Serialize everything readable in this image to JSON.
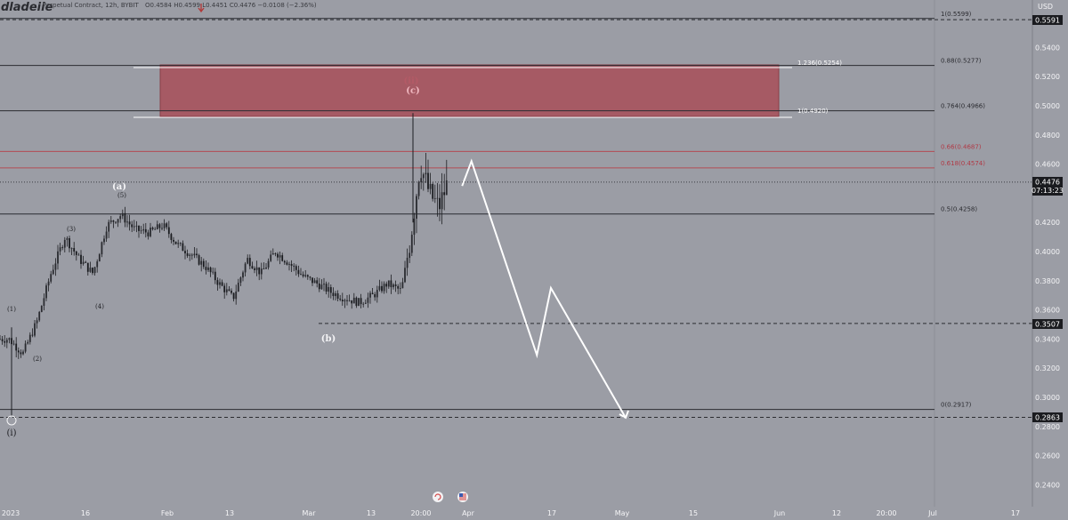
{
  "header": {
    "logo": "dladeiie",
    "symbol_info": "Perpetual Contract, 12h, BYBIT",
    "ohlc": "O0.4584  H0.4599  L0.4451  C0.4476  −0.0108 (−2.36%)"
  },
  "axis": {
    "currency": "USD",
    "y_ticks": [
      "0.5400",
      "0.5200",
      "0.5000",
      "0.4800",
      "0.4600",
      "0.4200",
      "0.4000",
      "0.3800",
      "0.3600",
      "0.3400",
      "0.3200",
      "0.3000",
      "0.2800",
      "0.2600",
      "0.2400"
    ],
    "x_ticks": [
      "2023",
      "16",
      "Feb",
      "13",
      "Mar",
      "13",
      "20:00",
      "Apr",
      "17",
      "May",
      "15",
      "Jun",
      "12",
      "20:00",
      "Jul",
      "17"
    ]
  },
  "price_labels": {
    "top": "0.5591",
    "current": "0.4476",
    "countdown": "07:13:23",
    "mid": "0.3507",
    "low": "0.2863"
  },
  "fib_levels": [
    {
      "label": "1(0.5599)",
      "price": 0.5599
    },
    {
      "label": "0.88(0.5277)",
      "price": 0.5277
    },
    {
      "label": "0.764(0.4966)",
      "price": 0.4966
    },
    {
      "label": "0.66(0.4687)",
      "price": 0.4687
    },
    {
      "label": "0.618(0.4574)",
      "price": 0.4574
    },
    {
      "label": "0.5(0.4258)",
      "price": 0.4258
    },
    {
      "label": "0(0.2917)",
      "price": 0.2917
    }
  ],
  "zone": {
    "upper_label": "1.236(0.5254)",
    "lower_label": "1(0.4920)",
    "color": "#a65a64"
  },
  "wave_labels": {
    "w1": "(1)",
    "w2": "(2)",
    "w3": "(3)",
    "w4": "(4)",
    "w5": "(5)",
    "a": "(a)",
    "b": "(b)",
    "c": "(c)",
    "ii": "(ii)",
    "i": "(i)"
  },
  "chart_data": {
    "type": "candlestick",
    "timeframe": "12h",
    "ohlc_last": {
      "open": 0.4584,
      "high": 0.4599,
      "low": 0.4451,
      "close": 0.4476,
      "change": -0.0108,
      "change_pct": -2.36
    },
    "ylim": [
      0.23,
      0.57
    ],
    "close_path": [
      [
        "2023-01-01",
        0.34
      ],
      [
        "2023-01-04",
        0.33
      ],
      [
        "2023-01-07",
        0.352
      ],
      [
        "2023-01-10",
        0.385
      ],
      [
        "2023-01-13",
        0.41
      ],
      [
        "2023-01-16",
        0.395
      ],
      [
        "2023-01-19",
        0.385
      ],
      [
        "2023-01-22",
        0.418
      ],
      [
        "2023-01-25",
        0.425
      ],
      [
        "2023-01-28",
        0.415
      ],
      [
        "2023-01-31",
        0.413
      ],
      [
        "2023-02-03",
        0.418
      ],
      [
        "2023-02-06",
        0.405
      ],
      [
        "2023-02-09",
        0.398
      ],
      [
        "2023-02-12",
        0.39
      ],
      [
        "2023-02-15",
        0.378
      ],
      [
        "2023-02-18",
        0.368
      ],
      [
        "2023-02-21",
        0.395
      ],
      [
        "2023-02-24",
        0.385
      ],
      [
        "2023-02-27",
        0.4
      ],
      [
        "2023-03-02",
        0.392
      ],
      [
        "2023-03-05",
        0.383
      ],
      [
        "2023-03-08",
        0.378
      ],
      [
        "2023-03-11",
        0.372
      ],
      [
        "2023-03-14",
        0.368
      ],
      [
        "2023-03-17",
        0.365
      ],
      [
        "2023-03-20",
        0.37
      ],
      [
        "2023-03-23",
        0.378
      ],
      [
        "2023-03-26",
        0.373
      ],
      [
        "2023-03-28",
        0.41
      ],
      [
        "2023-03-30",
        0.46
      ],
      [
        "2023-04-01",
        0.44
      ],
      [
        "2023-04-03",
        0.43
      ],
      [
        "2023-04-05",
        0.448
      ]
    ],
    "projection_path": [
      [
        "2023-04-08",
        0.445
      ],
      [
        "2023-04-10",
        0.462
      ],
      [
        "2023-04-24",
        0.329
      ],
      [
        "2023-04-27",
        0.375
      ],
      [
        "2023-05-13",
        0.286
      ]
    ]
  }
}
